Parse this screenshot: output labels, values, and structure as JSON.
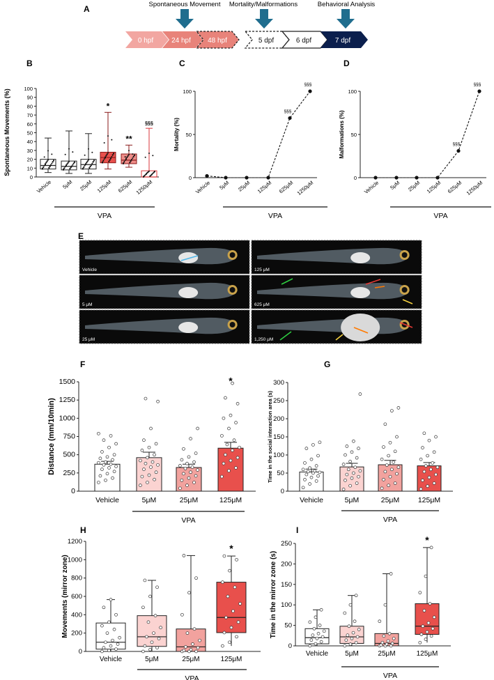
{
  "panel_labels": {
    "A": "A",
    "B": "B",
    "C": "C",
    "D": "D",
    "E": "E",
    "F": "F",
    "G": "G",
    "H": "H",
    "I": "I"
  },
  "timeline": {
    "stages": [
      "0 hpf",
      "24 hpf",
      "48 hpf",
      "5 dpf",
      "6 dpf",
      "7 dpf"
    ],
    "markers": [
      "Spontaneous Movement",
      "Mortality/Malformations",
      "Behavioral Analysis"
    ],
    "colors": {
      "light": "#f2a6a1",
      "medium": "#e8837a",
      "dark": "#0b1f4d",
      "arrow": "#1f6d8e"
    }
  },
  "group_label": "VPA",
  "micrographs": [
    {
      "label": "Vehicle",
      "col": 0,
      "row": 0
    },
    {
      "label": "5 μM",
      "col": 0,
      "row": 1
    },
    {
      "label": "25 μM",
      "col": 0,
      "row": 2
    },
    {
      "label": "125 μM",
      "col": 1,
      "row": 0
    },
    {
      "label": "625 μM",
      "col": 1,
      "row": 1
    },
    {
      "label": "1,250 μM",
      "col": 1,
      "row": 2
    }
  ],
  "chart_data": [
    {
      "panel": "B",
      "type": "box",
      "categories": [
        "Vehicle",
        "5μM",
        "25μM",
        "125μM",
        "625μM",
        "1250μM"
      ],
      "ylabel": "Spontaneous Movements (%)",
      "ylim": [
        0,
        100
      ],
      "yticks": [
        0,
        10,
        20,
        30,
        40,
        50,
        60,
        70,
        80,
        90,
        100
      ],
      "boxes": [
        {
          "min": 5,
          "q1": 9,
          "median": 13,
          "q3": 20,
          "max": 44
        },
        {
          "min": 4,
          "q1": 8,
          "median": 12,
          "q3": 18,
          "max": 52
        },
        {
          "min": 4,
          "q1": 9,
          "median": 14,
          "q3": 20,
          "max": 49
        },
        {
          "min": 9,
          "q1": 16,
          "median": 22,
          "q3": 28,
          "max": 73
        },
        {
          "min": 11,
          "q1": 15,
          "median": 19,
          "q3": 26,
          "max": 36
        },
        {
          "min": 0,
          "q1": 0,
          "median": 0,
          "q3": 7,
          "max": 55
        }
      ],
      "fills": [
        "#ffffff",
        "#ffffff",
        "#ffffff",
        "#e8504c",
        "#ef8d89",
        "#ffffff"
      ],
      "strokes": [
        "#222222",
        "#222222",
        "#222222",
        "#8a1a1a",
        "#8a1a1a",
        "#d9363a"
      ],
      "annotations": [
        "",
        "",
        "",
        "*",
        "**",
        "§§§"
      ]
    },
    {
      "panel": "C",
      "type": "line",
      "categories": [
        "Vehicle",
        "5μM",
        "25μM",
        "125μM",
        "625μM",
        "1250μM"
      ],
      "ylabel": "Mortality (%)",
      "ylim": [
        0,
        100
      ],
      "yticks": [
        0,
        50,
        100
      ],
      "values": [
        2,
        0,
        0,
        0,
        69,
        100
      ],
      "annotations": [
        "",
        "",
        "",
        "",
        "§§§",
        "§§§"
      ]
    },
    {
      "panel": "D",
      "type": "line",
      "categories": [
        "Vehicle",
        "5μM",
        "25μM",
        "125μM",
        "625μM",
        "1250μM"
      ],
      "ylabel": "Malformations (%)",
      "ylim": [
        0,
        100
      ],
      "yticks": [
        0,
        50,
        100
      ],
      "values": [
        0,
        0,
        0,
        0,
        31,
        100
      ],
      "annotations": [
        "",
        "",
        "",
        "",
        "§§§",
        "§§§"
      ]
    },
    {
      "panel": "F",
      "type": "bar",
      "categories": [
        "Vehicle",
        "5μM",
        "25μM",
        "125μM"
      ],
      "ylabel": "Distance (mm/10min)",
      "ylim": [
        0,
        1500
      ],
      "yticks": [
        0,
        250,
        500,
        750,
        1000,
        1250,
        1500
      ],
      "values": [
        370,
        460,
        325,
        590
      ],
      "errors": [
        40,
        75,
        45,
        80
      ],
      "fills": [
        "#ffffff",
        "#fbd3d1",
        "#f2a29e",
        "#e8504c"
      ],
      "annotations": [
        "",
        "",
        "",
        "*"
      ],
      "points": [
        [
          120,
          150,
          180,
          210,
          240,
          270,
          300,
          320,
          340,
          360,
          370,
          390,
          400,
          430,
          450,
          470,
          500,
          540,
          600,
          650,
          700,
          760,
          790
        ],
        [
          80,
          120,
          160,
          200,
          220,
          260,
          300,
          330,
          360,
          380,
          400,
          420,
          460,
          500,
          560,
          600,
          650,
          700,
          860,
          1230,
          1270
        ],
        [
          40,
          80,
          120,
          150,
          180,
          210,
          240,
          260,
          290,
          310,
          330,
          350,
          380,
          400,
          430,
          470,
          520,
          580,
          720,
          860
        ],
        [
          200,
          280,
          320,
          380,
          420,
          460,
          500,
          560,
          600,
          640,
          700,
          760,
          860,
          940,
          1000,
          1040,
          1200,
          1280,
          1480
        ]
      ]
    },
    {
      "panel": "G",
      "type": "bar",
      "categories": [
        "Vehicle",
        "5μM",
        "25μM",
        "125μM"
      ],
      "ylabel": "Time in the social interaction area (s)",
      "ylim": [
        0,
        300
      ],
      "yticks": [
        0,
        50,
        100,
        150,
        200,
        250,
        300
      ],
      "values": [
        53,
        67,
        73,
        70
      ],
      "errors": [
        8,
        10,
        12,
        9
      ],
      "fills": [
        "#ffffff",
        "#fbd3d1",
        "#f2a29e",
        "#e8504c"
      ],
      "annotations": [
        "",
        "",
        "",
        ""
      ],
      "points": [
        [
          10,
          20,
          28,
          32,
          38,
          42,
          46,
          50,
          52,
          54,
          56,
          60,
          64,
          70,
          78,
          88,
          98,
          118,
          128,
          135
        ],
        [
          5,
          15,
          22,
          30,
          36,
          40,
          46,
          50,
          56,
          60,
          66,
          74,
          82,
          92,
          100,
          108,
          118,
          124,
          138,
          268
        ],
        [
          8,
          16,
          22,
          32,
          40,
          48,
          54,
          60,
          66,
          72,
          80,
          88,
          98,
          110,
          122,
          134,
          150,
          185,
          222,
          230
        ],
        [
          6,
          14,
          22,
          30,
          38,
          46,
          54,
          60,
          66,
          70,
          78,
          88,
          98,
          108,
          120,
          140,
          150,
          160
        ]
      ]
    },
    {
      "panel": "H",
      "type": "box",
      "categories": [
        "Vehicle",
        "5μM",
        "25μM",
        "125μM"
      ],
      "ylabel": "Movements (mirror zone)",
      "ylim": [
        0,
        1200
      ],
      "yticks": [
        0,
        200,
        400,
        600,
        800,
        1000,
        1200
      ],
      "boxes": [
        {
          "min": 0,
          "q1": 25,
          "median": 100,
          "q3": 310,
          "max": 565
        },
        {
          "min": 0,
          "q1": 55,
          "median": 160,
          "q3": 390,
          "max": 775
        },
        {
          "min": 0,
          "q1": 0,
          "median": 50,
          "q3": 245,
          "max": 1045
        },
        {
          "min": 60,
          "q1": 205,
          "median": 370,
          "q3": 755,
          "max": 1040
        }
      ],
      "fills": [
        "#ffffff",
        "#fbd3d1",
        "#f2a29e",
        "#e8504c"
      ],
      "strokes": [
        "#222222",
        "#222222",
        "#222222",
        "#222222"
      ],
      "annotations": [
        "",
        "",
        "",
        "*"
      ],
      "points": [
        [
          0,
          10,
          25,
          40,
          60,
          80,
          100,
          120,
          150,
          200,
          240,
          280,
          320,
          400,
          480,
          565
        ],
        [
          0,
          20,
          40,
          60,
          100,
          140,
          160,
          200,
          260,
          320,
          390,
          480,
          600,
          700,
          775
        ],
        [
          0,
          0,
          0,
          10,
          20,
          40,
          50,
          80,
          120,
          200,
          245,
          400,
          640,
          800,
          1045
        ],
        [
          60,
          100,
          160,
          205,
          260,
          320,
          370,
          440,
          520,
          600,
          700,
          755,
          880,
          1000,
          1040
        ]
      ]
    },
    {
      "panel": "I",
      "type": "box",
      "categories": [
        "Vehicle",
        "5μM",
        "25μM",
        "125μM"
      ],
      "ylabel": "Time in the mirror zone (s)",
      "ylim": [
        0,
        250
      ],
      "yticks": [
        0,
        50,
        100,
        150,
        200,
        250
      ],
      "boxes": [
        {
          "min": 0,
          "q1": 5,
          "median": 20,
          "q3": 42,
          "max": 88
        },
        {
          "min": 0,
          "q1": 6,
          "median": 22,
          "q3": 48,
          "max": 123
        },
        {
          "min": 0,
          "q1": 0,
          "median": 6,
          "q3": 30,
          "max": 176
        },
        {
          "min": 8,
          "q1": 28,
          "median": 48,
          "q3": 103,
          "max": 240
        }
      ],
      "fills": [
        "#ffffff",
        "#fbd3d1",
        "#f2a29e",
        "#e8504c"
      ],
      "strokes": [
        "#222222",
        "#222222",
        "#222222",
        "#222222"
      ],
      "annotations": [
        "",
        "",
        "",
        "*"
      ],
      "points": [
        [
          0,
          5,
          10,
          14,
          18,
          22,
          26,
          30,
          36,
          42,
          50,
          58,
          70,
          88
        ],
        [
          0,
          4,
          8,
          14,
          18,
          22,
          26,
          32,
          40,
          48,
          60,
          80,
          100,
          123
        ],
        [
          0,
          0,
          0,
          2,
          4,
          6,
          8,
          12,
          18,
          24,
          30,
          60,
          100,
          176
        ],
        [
          8,
          16,
          24,
          28,
          34,
          42,
          48,
          56,
          70,
          86,
          103,
          130,
          170,
          240
        ]
      ]
    }
  ]
}
